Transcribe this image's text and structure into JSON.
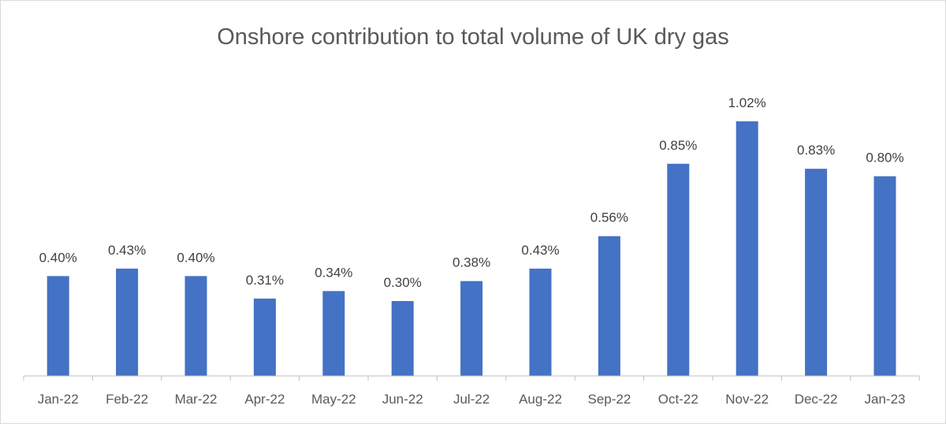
{
  "chart_data": {
    "type": "bar",
    "title": "Onshore contribution to total volume of UK dry gas",
    "xlabel": "",
    "ylabel": "",
    "categories": [
      "Jan-22",
      "Feb-22",
      "Mar-22",
      "Apr-22",
      "May-22",
      "Jun-22",
      "Jul-22",
      "Aug-22",
      "Sep-22",
      "Oct-22",
      "Nov-22",
      "Dec-22",
      "Jan-23"
    ],
    "values": [
      0.4,
      0.43,
      0.4,
      0.31,
      0.34,
      0.3,
      0.38,
      0.43,
      0.56,
      0.85,
      1.02,
      0.83,
      0.8
    ],
    "data_labels": [
      "0.40%",
      "0.43%",
      "0.40%",
      "0.31%",
      "0.34%",
      "0.30%",
      "0.38%",
      "0.43%",
      "0.56%",
      "0.85%",
      "1.02%",
      "0.83%",
      "0.80%"
    ],
    "ylim": [
      0,
      1.1
    ],
    "unit": "%",
    "grid": false,
    "legend": "none",
    "bar_color": "#4472c4"
  }
}
